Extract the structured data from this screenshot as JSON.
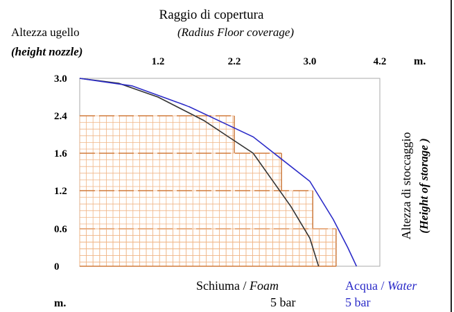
{
  "chart_data": {
    "type": "line",
    "title": "Raggio di copertura",
    "subtitle": "(Radius Floor coverage)",
    "ylabel_top": "Altezza ugello",
    "ylabel_top_en": "(height nozzle)",
    "ylabel_right": "Altezza di stoccaggio",
    "ylabel_right_en": "(Height of storage )",
    "x_unit": "m.",
    "y_unit": "m.",
    "x_ticks": [
      "1.2",
      "2.2",
      "3.0",
      "4.2"
    ],
    "y_ticks": [
      "3.0",
      "2.4",
      "1.6",
      "1.2",
      "0.6",
      "0"
    ],
    "storage_steps": [
      {
        "height": "2.4",
        "radius": 2.2
      },
      {
        "height": "1.6",
        "radius": 2.7
      },
      {
        "height": "1.2",
        "radius": 3.05
      },
      {
        "height": "0.6",
        "radius": 3.45
      },
      {
        "height": "0",
        "radius": 3.45
      }
    ],
    "series": [
      {
        "name": "Schiuma / Foam",
        "name_main": "Schiuma / ",
        "name_en": "Foam",
        "pressure": "5 bar",
        "color": "#333333",
        "x": [
          0,
          0.6,
          1.2,
          1.8,
          2.4,
          2.8,
          3.0,
          3.15
        ],
        "y": [
          3.0,
          2.92,
          2.7,
          2.3,
          1.6,
          0.95,
          0.45,
          0
        ]
      },
      {
        "name": "Acqua / Water",
        "name_main": "Acqua / ",
        "name_en": "Water",
        "pressure": "5 bar",
        "color": "#2b2bc8",
        "x": [
          0,
          0.8,
          1.6,
          2.4,
          3.0,
          3.4,
          3.65,
          3.8
        ],
        "y": [
          3.0,
          2.88,
          2.55,
          1.95,
          1.3,
          0.75,
          0.3,
          0
        ]
      }
    ],
    "colors": {
      "grid": "#f0b586",
      "dash": "#d07a3a",
      "step": "#c8702e",
      "frame": "#aaaaaa"
    }
  }
}
